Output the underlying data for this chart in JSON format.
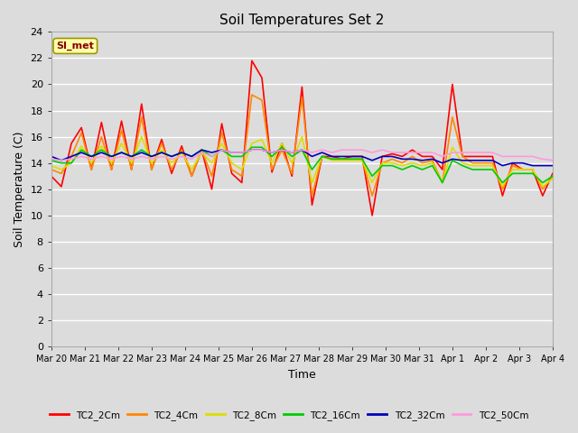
{
  "title": "Soil Temperatures Set 2",
  "xlabel": "Time",
  "ylabel": "Soil Temperature (C)",
  "ylim": [
    0,
    24
  ],
  "yticks": [
    0,
    2,
    4,
    6,
    8,
    10,
    12,
    14,
    16,
    18,
    20,
    22,
    24
  ],
  "background_color": "#dcdcdc",
  "plot_bg_color": "#dcdcdc",
  "grid_color": "#ffffff",
  "annotation_text": "SI_met",
  "annotation_bg": "#ffffaa",
  "annotation_border": "#999900",
  "annotation_text_color": "#880000",
  "series_colors": {
    "TC2_2Cm": "#ff0000",
    "TC2_4Cm": "#ff8800",
    "TC2_8Cm": "#dddd00",
    "TC2_16Cm": "#00cc00",
    "TC2_32Cm": "#0000bb",
    "TC2_50Cm": "#ff99dd"
  },
  "xtick_labels": [
    "Mar 20",
    "Mar 21",
    "Mar 22",
    "Mar 23",
    "Mar 24",
    "Mar 25",
    "Mar 26",
    "Mar 27",
    "Mar 28",
    "Mar 29",
    "Mar 30",
    "Mar 31",
    "Apr 1",
    "Apr 2",
    "Apr 3",
    "Apr 4"
  ],
  "TC2_2Cm": [
    13.0,
    12.2,
    15.5,
    16.7,
    13.5,
    17.1,
    13.5,
    17.2,
    13.5,
    18.5,
    13.5,
    15.8,
    13.2,
    15.3,
    13.0,
    15.0,
    12.0,
    17.0,
    13.2,
    12.5,
    21.8,
    20.5,
    13.3,
    15.5,
    13.0,
    19.8,
    10.8,
    14.5,
    14.5,
    14.3,
    14.5,
    14.5,
    10.0,
    14.5,
    14.7,
    14.5,
    15.0,
    14.5,
    14.5,
    13.5,
    20.0,
    14.5,
    14.5,
    14.5,
    14.5,
    11.5,
    14.0,
    13.5,
    13.5,
    11.5,
    13.2
  ],
  "TC2_4Cm": [
    13.5,
    13.2,
    14.5,
    16.3,
    13.5,
    16.0,
    13.5,
    16.5,
    13.5,
    17.5,
    13.5,
    15.5,
    13.5,
    15.0,
    13.0,
    15.0,
    13.0,
    16.3,
    13.5,
    13.0,
    19.2,
    18.8,
    13.5,
    15.0,
    13.2,
    19.0,
    11.5,
    14.5,
    14.3,
    14.3,
    14.3,
    14.3,
    11.5,
    14.0,
    14.3,
    14.0,
    14.5,
    14.0,
    14.2,
    12.5,
    17.5,
    14.5,
    14.0,
    14.0,
    14.0,
    12.0,
    13.8,
    13.5,
    13.5,
    12.0,
    13.0
  ],
  "TC2_8Cm": [
    13.8,
    13.5,
    14.0,
    15.3,
    14.0,
    15.3,
    14.0,
    15.5,
    14.0,
    16.0,
    14.0,
    15.0,
    14.0,
    14.8,
    13.5,
    14.8,
    14.0,
    15.5,
    14.0,
    13.5,
    15.5,
    15.8,
    14.0,
    15.5,
    14.0,
    16.0,
    12.5,
    14.5,
    14.2,
    14.2,
    14.2,
    14.2,
    12.5,
    14.0,
    14.0,
    13.8,
    14.0,
    13.8,
    14.0,
    12.5,
    15.2,
    14.0,
    13.8,
    13.8,
    13.8,
    12.2,
    13.5,
    13.5,
    13.5,
    12.2,
    12.8
  ],
  "TC2_16Cm": [
    14.2,
    14.0,
    14.0,
    15.0,
    14.5,
    15.0,
    14.5,
    14.8,
    14.5,
    15.0,
    14.5,
    14.8,
    14.5,
    14.8,
    14.5,
    15.0,
    14.5,
    15.0,
    14.5,
    14.5,
    15.2,
    15.2,
    14.5,
    15.2,
    14.5,
    15.0,
    13.5,
    14.5,
    14.3,
    14.3,
    14.3,
    14.3,
    13.0,
    13.8,
    13.8,
    13.5,
    13.8,
    13.5,
    13.8,
    12.5,
    14.2,
    13.8,
    13.5,
    13.5,
    13.5,
    12.5,
    13.2,
    13.2,
    13.2,
    12.5,
    13.0
  ],
  "TC2_32Cm": [
    14.5,
    14.2,
    14.5,
    14.8,
    14.5,
    14.8,
    14.5,
    14.8,
    14.5,
    14.8,
    14.5,
    14.8,
    14.5,
    14.8,
    14.5,
    15.0,
    14.8,
    15.0,
    14.8,
    14.8,
    15.0,
    15.0,
    14.8,
    15.0,
    14.8,
    15.0,
    14.5,
    14.8,
    14.5,
    14.5,
    14.5,
    14.5,
    14.2,
    14.5,
    14.5,
    14.3,
    14.3,
    14.2,
    14.3,
    14.0,
    14.3,
    14.2,
    14.2,
    14.2,
    14.2,
    13.8,
    14.0,
    14.0,
    13.8,
    13.8,
    13.8
  ],
  "TC2_50Cm": [
    14.3,
    14.2,
    14.3,
    14.5,
    14.3,
    14.5,
    14.3,
    14.5,
    14.3,
    14.5,
    14.3,
    14.5,
    14.3,
    14.5,
    14.3,
    14.8,
    14.5,
    15.0,
    14.8,
    14.8,
    15.0,
    15.0,
    14.8,
    15.0,
    14.8,
    15.0,
    14.8,
    15.0,
    14.8,
    15.0,
    15.0,
    15.0,
    14.8,
    15.0,
    14.8,
    14.8,
    14.8,
    14.8,
    14.8,
    14.5,
    14.8,
    14.8,
    14.8,
    14.8,
    14.8,
    14.5,
    14.5,
    14.5,
    14.5,
    14.3,
    14.2
  ]
}
